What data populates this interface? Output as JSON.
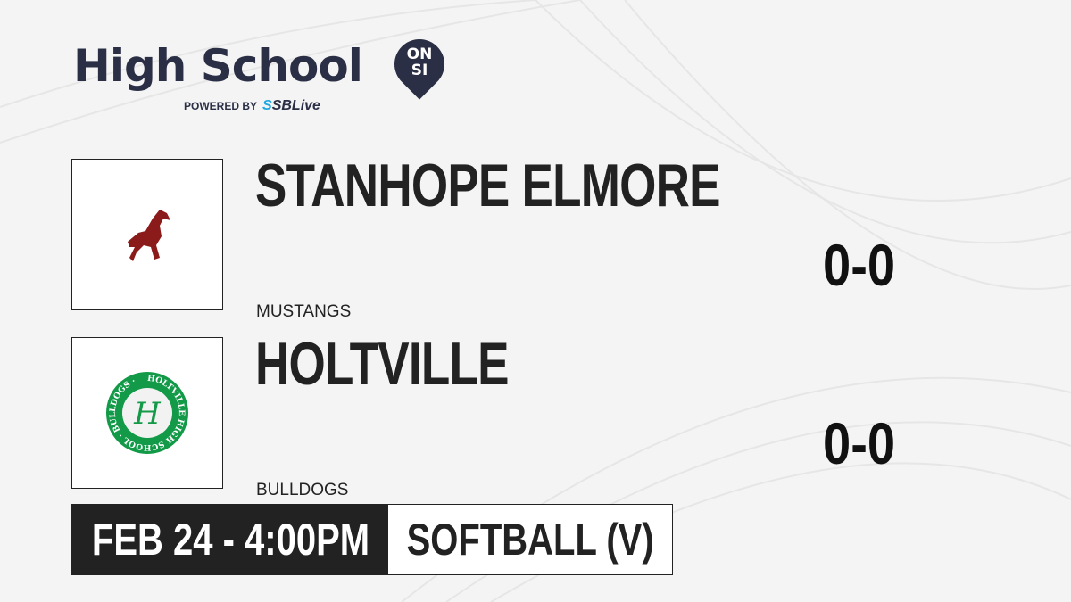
{
  "brand": {
    "title": "High School",
    "badge_top": "ON",
    "badge_bottom": "SI",
    "powered_by": "POWERED BY",
    "partner_prefix": "S",
    "partner": "SBLive"
  },
  "teams": [
    {
      "name": "STANHOPE ELMORE",
      "mascot": "MUSTANGS",
      "score": "0-0",
      "logo_color": "#8b1a1a",
      "logo_icon": "horse-icon"
    },
    {
      "name": "HOLTVILLE",
      "mascot": "BULLDOGS",
      "score": "0-0",
      "logo_color": "#139a48",
      "logo_ring_text": "HOLTVILLE HIGH SCHOOL · BULLDOGS ·",
      "logo_letter": "H"
    }
  ],
  "game": {
    "datetime": "FEB 24 - 4:00PM",
    "sport": "SOFTBALL (V)"
  }
}
